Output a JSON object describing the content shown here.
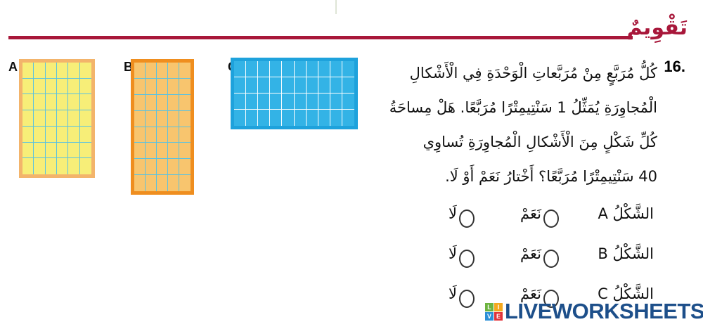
{
  "header": {
    "title": "تَقْوِيمٌ"
  },
  "figures": [
    {
      "label": "A",
      "cols": 6,
      "rows": 7,
      "fill": "#f7ee78",
      "border": "#f3b46b",
      "grid": "#5bc2e0"
    },
    {
      "label": "B",
      "cols": 5,
      "rows": 8,
      "fill": "#f8c56e",
      "border": "#ef8e1f",
      "grid": "#5bc2e0"
    },
    {
      "label": "C",
      "cols": 10,
      "rows": 4,
      "fill": "#33b3e6",
      "border": "#1ea2dc",
      "grid": "#ffffff"
    }
  ],
  "question": {
    "number": "16.",
    "lines": [
      "كُلُّ مُرَبَّعٍ مِنْ مُرَبَّعاتِ الْوَحْدَةِ فِي الْأَشْكالِ",
      "الْمُجاوِرَةِ يُمَثِّلُ 1 سَنْتِيمِتْرًا مُرَبَّعًا. هَلْ مِساحَةُ",
      "كُلِّ شَكْلٍ مِنَ الْأَشْكالِ الْمُجاوِرَةِ تُساوِي",
      "40 سَنْتِيمِتْرًا مُرَبَّعًا؟ أَخْتارُ نَعَمْ أَوْ لَا."
    ]
  },
  "answers": [
    {
      "label": "الشَّكْلُ A",
      "yes": "نَعَمْ",
      "no": "لَا"
    },
    {
      "label": "الشَّكْلُ B",
      "yes": "نَعَمْ",
      "no": "لَا"
    },
    {
      "label": "الشَّكْلُ C",
      "yes": "نَعَمْ",
      "no": "لَا"
    }
  ],
  "watermark": {
    "text": "LIVEWORKSHEETS",
    "letters": [
      "L",
      "I",
      "V",
      "E"
    ]
  }
}
